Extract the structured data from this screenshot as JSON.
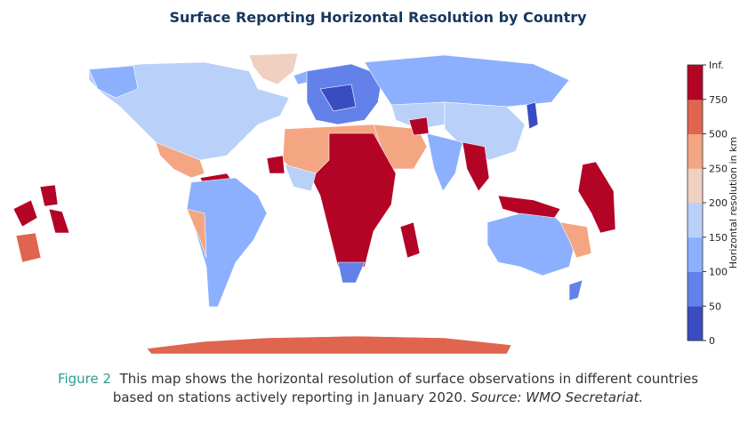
{
  "title": "Surface Reporting Horizontal Resolution by Country",
  "colorbar": {
    "label": "Horizontal resolution in km",
    "ticks": [
      0,
      50,
      100,
      150,
      200,
      250,
      500,
      750,
      "Inf."
    ],
    "colors": [
      "#3b4cc0",
      "#6282ea",
      "#8db0fe",
      "#b9d0f9",
      "#f0d0c0",
      "#f4a582",
      "#e0654f",
      "#b40426"
    ]
  },
  "caption": {
    "figure": "Figure 2",
    "line1": "This map shows the horizontal resolution of surface observations in different countries",
    "line2": "based on stations actively reporting in January 2020.",
    "source": "Source: WMO Secretariat."
  }
}
